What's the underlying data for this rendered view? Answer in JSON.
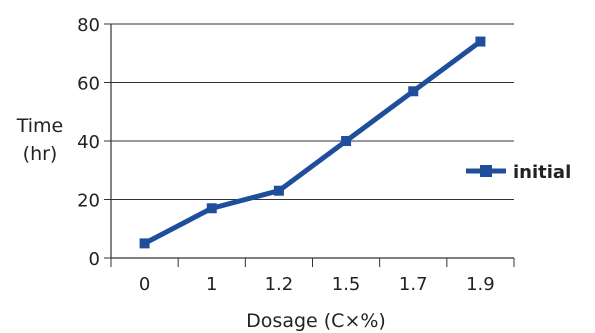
{
  "chart_data": {
    "type": "line",
    "categories": [
      "0",
      "1",
      "1.2",
      "1.5",
      "1.7",
      "1.9"
    ],
    "series": [
      {
        "name": "initial",
        "values": [
          5,
          17,
          23,
          40,
          57,
          74
        ],
        "color": "#1f4f9c",
        "marker": "square"
      }
    ],
    "ylabel_line1": "Time",
    "ylabel_line2": "(hr)",
    "xlabel": "Dosage (C×%)",
    "ylim": [
      0,
      80
    ],
    "yticks": [
      0,
      20,
      40,
      60,
      80
    ],
    "grid": "horizontal",
    "legend_position": "right"
  }
}
